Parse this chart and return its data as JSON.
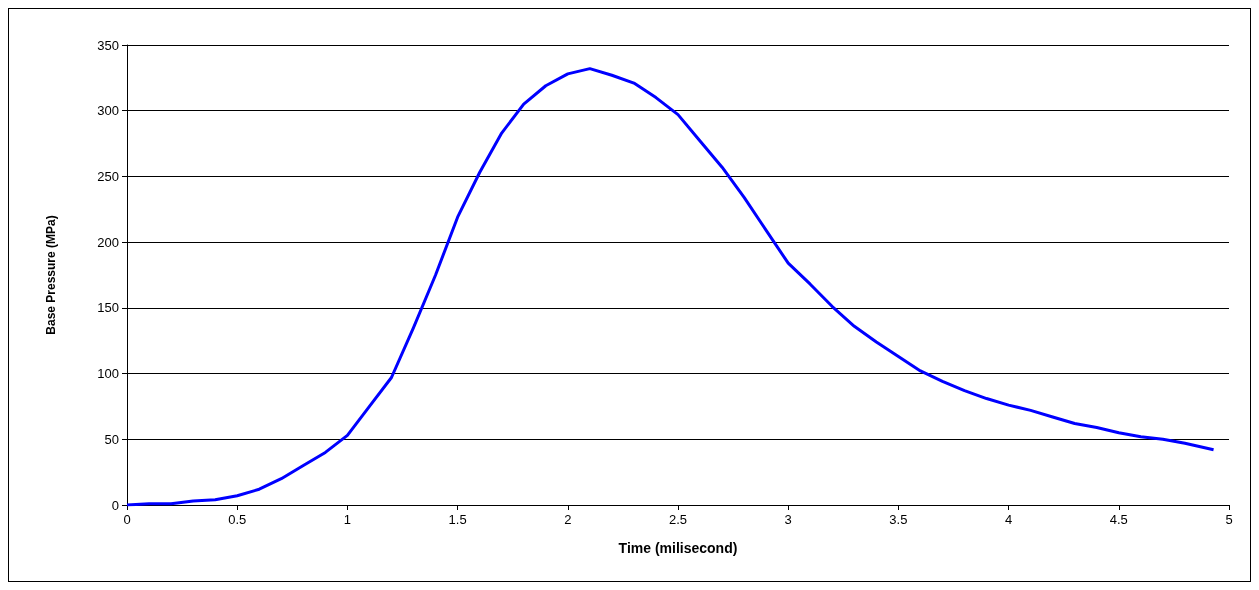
{
  "chart_data": {
    "type": "line",
    "xlabel": "Time (milisecond)",
    "ylabel": "Base Pressure (MPa)",
    "x": [
      0,
      0.1,
      0.2,
      0.3,
      0.4,
      0.5,
      0.6,
      0.7,
      0.8,
      0.9,
      1.0,
      1.1,
      1.2,
      1.3,
      1.4,
      1.5,
      1.6,
      1.7,
      1.8,
      1.9,
      2.0,
      2.1,
      2.2,
      2.3,
      2.4,
      2.5,
      2.6,
      2.7,
      2.8,
      2.9,
      3.0,
      3.1,
      3.2,
      3.3,
      3.4,
      3.5,
      3.6,
      3.7,
      3.8,
      3.9,
      4.0,
      4.1,
      4.2,
      4.3,
      4.4,
      4.5,
      4.6,
      4.7,
      4.8,
      4.93
    ],
    "series": [
      {
        "color": "#0000ff",
        "values": [
          0,
          1,
          1,
          3,
          4,
          7,
          12,
          20,
          30,
          40,
          53,
          75,
          97,
          135,
          175,
          219,
          253,
          283,
          305,
          319,
          328,
          332,
          327,
          321,
          310,
          297,
          277,
          257,
          234,
          209,
          184,
          168,
          151,
          136,
          124,
          113,
          102,
          94,
          87,
          81,
          76,
          72,
          67,
          62,
          59,
          55,
          52,
          50,
          47,
          42
        ]
      }
    ],
    "xlim": [
      0,
      5
    ],
    "xticks": [
      0,
      0.5,
      1,
      1.5,
      2,
      2.5,
      3,
      3.5,
      4,
      4.5,
      5
    ],
    "ylim": [
      0,
      350
    ],
    "yticks": [
      0,
      50,
      100,
      150,
      200,
      250,
      300,
      350
    ],
    "grid": "y",
    "marker": "none",
    "line_style": "solid"
  }
}
